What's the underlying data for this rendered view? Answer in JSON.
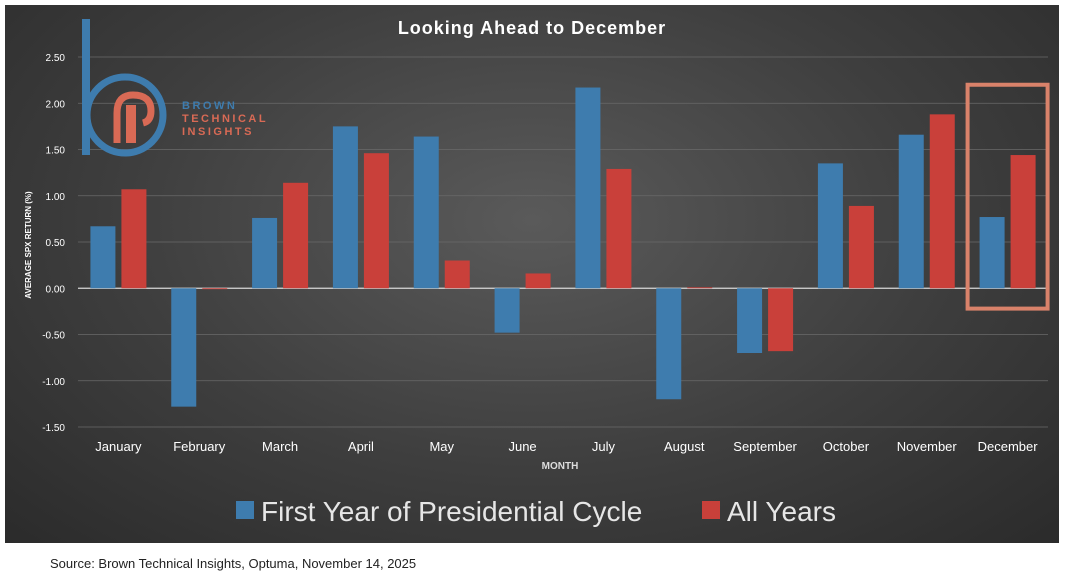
{
  "chart_data": {
    "type": "bar",
    "title": "Looking Ahead to December",
    "xlabel": "MONTH",
    "ylabel": "AVERAGE SPX RETURN (%)",
    "ylim": [
      -1.5,
      2.5
    ],
    "yticks": [
      "2.50",
      "2.00",
      "1.50",
      "1.00",
      "0.50",
      "0.00",
      "-0.50",
      "-1.00",
      "-1.50"
    ],
    "grid": true,
    "categories": [
      "January",
      "February",
      "March",
      "April",
      "May",
      "June",
      "July",
      "August",
      "September",
      "October",
      "November",
      "December"
    ],
    "series": [
      {
        "name": "First Year of Presidential Cycle",
        "color": "#3e7cae",
        "values": [
          0.67,
          -1.28,
          0.76,
          1.75,
          1.64,
          -0.48,
          2.17,
          -1.2,
          -0.7,
          1.35,
          1.66,
          0.77
        ]
      },
      {
        "name": "All Years",
        "color": "#c9403a",
        "values": [
          1.07,
          -0.01,
          1.14,
          1.46,
          0.3,
          0.16,
          1.29,
          0.01,
          -0.68,
          0.89,
          1.88,
          1.44
        ]
      }
    ],
    "highlight": {
      "category": "December",
      "color": "#d9826a"
    },
    "legend_position": "bottom"
  },
  "logo": {
    "letter_mark": "b",
    "line1": "BROWN",
    "line2": "TECHNICAL",
    "line3": "INSIGHTS",
    "color_blue": "#3e7cae",
    "color_red": "#d96a55"
  },
  "source_text": "Source: Brown Technical Insights, Optuma, November 14, 2025"
}
